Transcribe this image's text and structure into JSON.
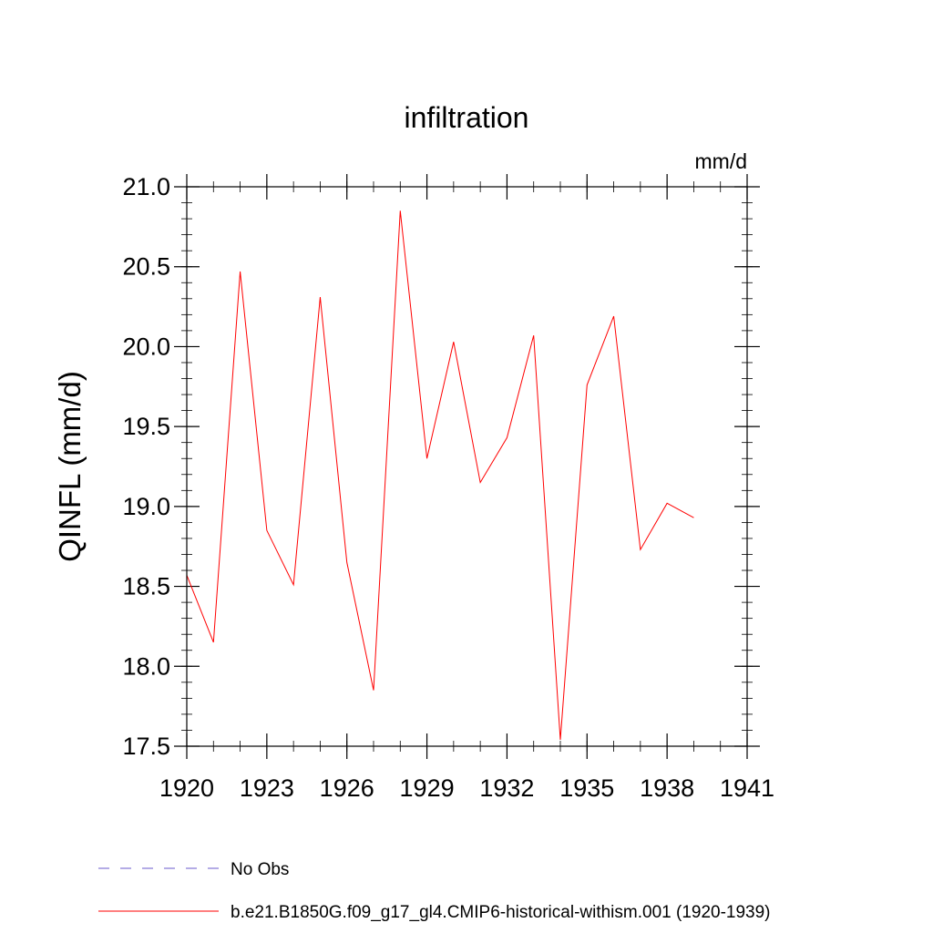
{
  "chart_data": {
    "type": "line",
    "title": "infiltration",
    "units": "mm/d",
    "ylabel": "QINFL  (mm/d)",
    "xlabel": "",
    "xlim": [
      1920,
      1941
    ],
    "ylim": [
      17.5,
      21.0
    ],
    "x_ticks": [
      1920,
      1923,
      1926,
      1929,
      1932,
      1935,
      1938,
      1941
    ],
    "x_tick_labels": [
      "1920",
      "1923",
      "1926",
      "1929",
      "1932",
      "1935",
      "1938",
      "1941"
    ],
    "y_ticks": [
      17.5,
      18.0,
      18.5,
      19.0,
      19.5,
      20.0,
      20.5,
      21.0
    ],
    "y_tick_labels": [
      "17.5",
      "18.0",
      "18.5",
      "19.0",
      "19.5",
      "20.0",
      "20.5",
      "21.0"
    ],
    "grid": false,
    "legend_position": "bottom",
    "series": [
      {
        "name": "b.e21.B1850G.f09_g17_gl4.CMIP6-historical-withism.001 (1920-1939)",
        "color": "#ff0000",
        "style": "solid",
        "x": [
          1920,
          1921,
          1922,
          1923,
          1924,
          1925,
          1926,
          1927,
          1928,
          1929,
          1930,
          1931,
          1932,
          1933,
          1934,
          1935,
          1936,
          1937,
          1938,
          1939
        ],
        "y": [
          18.57,
          18.15,
          20.47,
          18.85,
          18.51,
          20.31,
          18.65,
          17.85,
          20.85,
          19.3,
          20.03,
          19.15,
          19.43,
          20.07,
          17.54,
          19.76,
          20.19,
          18.73,
          19.02,
          18.93
        ]
      }
    ],
    "legend": [
      {
        "label": "No Obs",
        "color": "#6a5acd",
        "style": "dashed"
      },
      {
        "label": "b.e21.B1850G.f09_g17_gl4.CMIP6-historical-withism.001 (1920-1939)",
        "color": "#ff0000",
        "style": "solid"
      }
    ]
  }
}
